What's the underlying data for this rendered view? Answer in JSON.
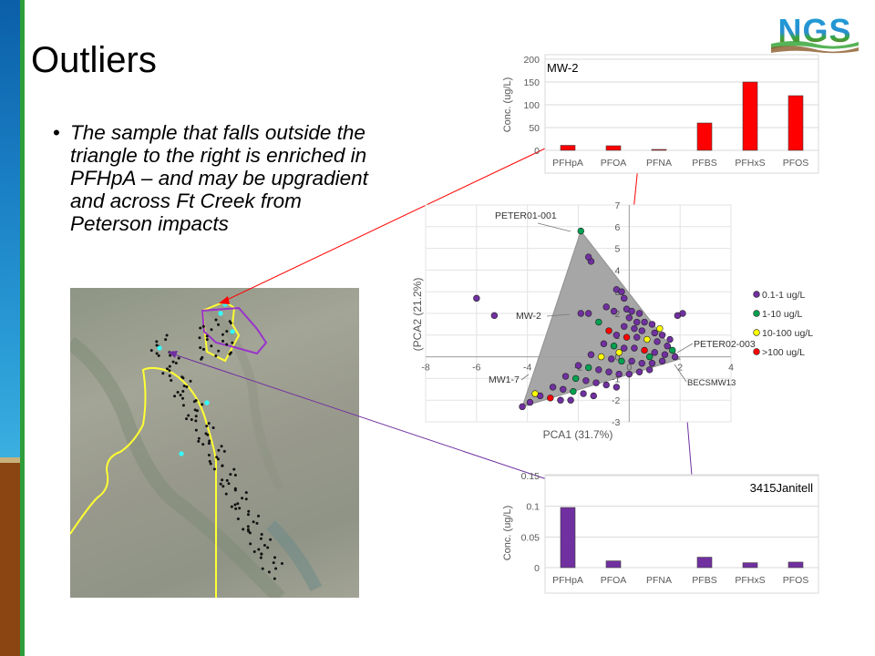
{
  "slide": {
    "title": "Outliers",
    "bullet": "The sample that falls outside the triangle to the right is enriched in PFHpA – and may be upgradient and across Ft Creek from Peterson impacts",
    "logo_text": "NGS",
    "colors": {
      "bar_blue": "#1a7fc4",
      "bar_green": "#2e9e3a",
      "bar_brown": "#8b4513"
    }
  },
  "chart_data": [
    {
      "type": "bar",
      "title": "MW-2",
      "ylabel": "Conc. (ug/L)",
      "categories": [
        "PFHpA",
        "PFOA",
        "PFNA",
        "PFBS",
        "PFHxS",
        "PFOS"
      ],
      "values": [
        11,
        10,
        2,
        60,
        150,
        120
      ],
      "ylim": [
        0,
        200
      ],
      "yticks": [
        "0",
        "50",
        "100",
        "150",
        "200"
      ],
      "color": "#ff0000"
    },
    {
      "type": "scatter",
      "xlabel": "PCA1 (31.7%)",
      "ylabel": "(PCA2 (21.2%)",
      "xlim": [
        -8,
        4
      ],
      "ylim": [
        -3,
        7
      ],
      "xticks": [
        "-8",
        "-6",
        "-4",
        "-2",
        "0",
        "2",
        "4"
      ],
      "yticks": [
        "-3",
        "-2",
        "-1",
        "0",
        "1",
        "2",
        "3",
        "4",
        "5",
        "6",
        "7"
      ],
      "triangle": [
        [
          -1.9,
          5.8
        ],
        [
          -4.2,
          -2.3
        ],
        [
          2.0,
          -0.1
        ]
      ],
      "legend_position": "right",
      "series": [
        {
          "name": "0.1-1 ug/L",
          "color": "#7030a0"
        },
        {
          "name": "1-10 ug/L",
          "color": "#00a050"
        },
        {
          "name": "10-100 ug/L",
          "color": "#ffff00"
        },
        {
          "name": ">100 ug/L",
          "color": "#ff0000"
        }
      ],
      "labels": [
        "PETER01-001",
        "MW-2",
        "MW1-7",
        "PETER02-003",
        "BECSMW13"
      ],
      "points": [
        [
          -1.9,
          5.8,
          1
        ],
        [
          -6.0,
          2.7,
          0
        ],
        [
          -5.3,
          1.9,
          0
        ],
        [
          -1.9,
          2.0,
          0
        ],
        [
          -1.6,
          2.0,
          0
        ],
        [
          -1.5,
          4.4,
          0
        ],
        [
          -1.6,
          4.6,
          0
        ],
        [
          -0.5,
          3.1,
          0
        ],
        [
          -0.3,
          3.0,
          0
        ],
        [
          -0.2,
          2.7,
          0
        ],
        [
          -1.2,
          1.6,
          1
        ],
        [
          -0.9,
          2.3,
          0
        ],
        [
          2.1,
          2.0,
          0
        ],
        [
          1.9,
          1.9,
          0
        ],
        [
          -0.6,
          2.1,
          0
        ],
        [
          -0.1,
          2.2,
          0
        ],
        [
          0.1,
          2.1,
          0
        ],
        [
          0.4,
          2.0,
          0
        ],
        [
          0.6,
          1.6,
          0
        ],
        [
          0.9,
          1.5,
          0
        ],
        [
          -0.2,
          1.4,
          0
        ],
        [
          0.2,
          1.3,
          0
        ],
        [
          0.5,
          1.2,
          0
        ],
        [
          1.0,
          1.1,
          0
        ],
        [
          1.3,
          1.0,
          0
        ],
        [
          1.6,
          0.8,
          0
        ],
        [
          -0.5,
          1.0,
          0
        ],
        [
          -0.1,
          0.9,
          3
        ],
        [
          0.3,
          0.9,
          0
        ],
        [
          0.7,
          0.8,
          2
        ],
        [
          1.1,
          0.7,
          0
        ],
        [
          1.5,
          0.5,
          0
        ],
        [
          -1.0,
          0.6,
          0
        ],
        [
          -0.6,
          0.5,
          1
        ],
        [
          -0.2,
          0.4,
          0
        ],
        [
          0.2,
          0.4,
          0
        ],
        [
          0.6,
          0.3,
          3
        ],
        [
          1.0,
          0.2,
          0
        ],
        [
          1.4,
          0.1,
          0
        ],
        [
          1.8,
          0.0,
          0
        ],
        [
          -1.5,
          0.1,
          0
        ],
        [
          -1.1,
          0.0,
          2
        ],
        [
          -0.7,
          -0.1,
          0
        ],
        [
          -0.3,
          -0.2,
          1
        ],
        [
          0.1,
          -0.2,
          0
        ],
        [
          0.5,
          -0.3,
          0
        ],
        [
          0.9,
          -0.3,
          0
        ],
        [
          1.3,
          -0.2,
          0
        ],
        [
          -2.0,
          -0.4,
          0
        ],
        [
          -1.6,
          -0.5,
          1
        ],
        [
          -1.2,
          -0.6,
          0
        ],
        [
          -0.8,
          -0.7,
          0
        ],
        [
          -0.4,
          -0.8,
          0
        ],
        [
          0.0,
          -0.8,
          0
        ],
        [
          0.4,
          -0.7,
          0
        ],
        [
          0.8,
          -0.6,
          0
        ],
        [
          -2.5,
          -0.9,
          0
        ],
        [
          -2.1,
          -1.0,
          1
        ],
        [
          -1.7,
          -1.1,
          0
        ],
        [
          -1.3,
          -1.2,
          0
        ],
        [
          -0.9,
          -1.3,
          0
        ],
        [
          -0.5,
          -1.4,
          0
        ],
        [
          -3.0,
          -1.4,
          0
        ],
        [
          -2.6,
          -1.5,
          0
        ],
        [
          -2.2,
          -1.6,
          1
        ],
        [
          -1.8,
          -1.7,
          0
        ],
        [
          -1.4,
          -1.8,
          0
        ],
        [
          -3.5,
          -1.8,
          0
        ],
        [
          -3.1,
          -1.9,
          3
        ],
        [
          -2.7,
          -2.0,
          0
        ],
        [
          -2.3,
          -2.0,
          0
        ],
        [
          -3.7,
          -1.7,
          2
        ],
        [
          -4.2,
          -2.3,
          0
        ],
        [
          -3.9,
          -2.1,
          0
        ],
        [
          0.3,
          1.6,
          0
        ],
        [
          -0.4,
          0.2,
          2
        ],
        [
          1.2,
          1.3,
          2
        ],
        [
          0.8,
          0.0,
          1
        ],
        [
          1.7,
          0.3,
          1
        ],
        [
          -0.8,
          1.2,
          3
        ],
        [
          0.0,
          1.8,
          0
        ]
      ]
    },
    {
      "type": "bar",
      "title": "3415Janitell",
      "ylabel": "Conc. (ug/L)",
      "categories": [
        "PFHpA",
        "PFOA",
        "PFNA",
        "PFBS",
        "PFHxS",
        "PFOS"
      ],
      "values": [
        0.098,
        0.011,
        0.0,
        0.017,
        0.008,
        0.009
      ],
      "ylim": [
        0,
        0.15
      ],
      "yticks": [
        "0",
        "0.05",
        "0.1",
        "0.15"
      ],
      "color": "#7030a0"
    }
  ],
  "map": {
    "markers_cyan": 6,
    "boundary_colors": {
      "yellow": "#ffff33",
      "purple": "#9933cc"
    }
  }
}
